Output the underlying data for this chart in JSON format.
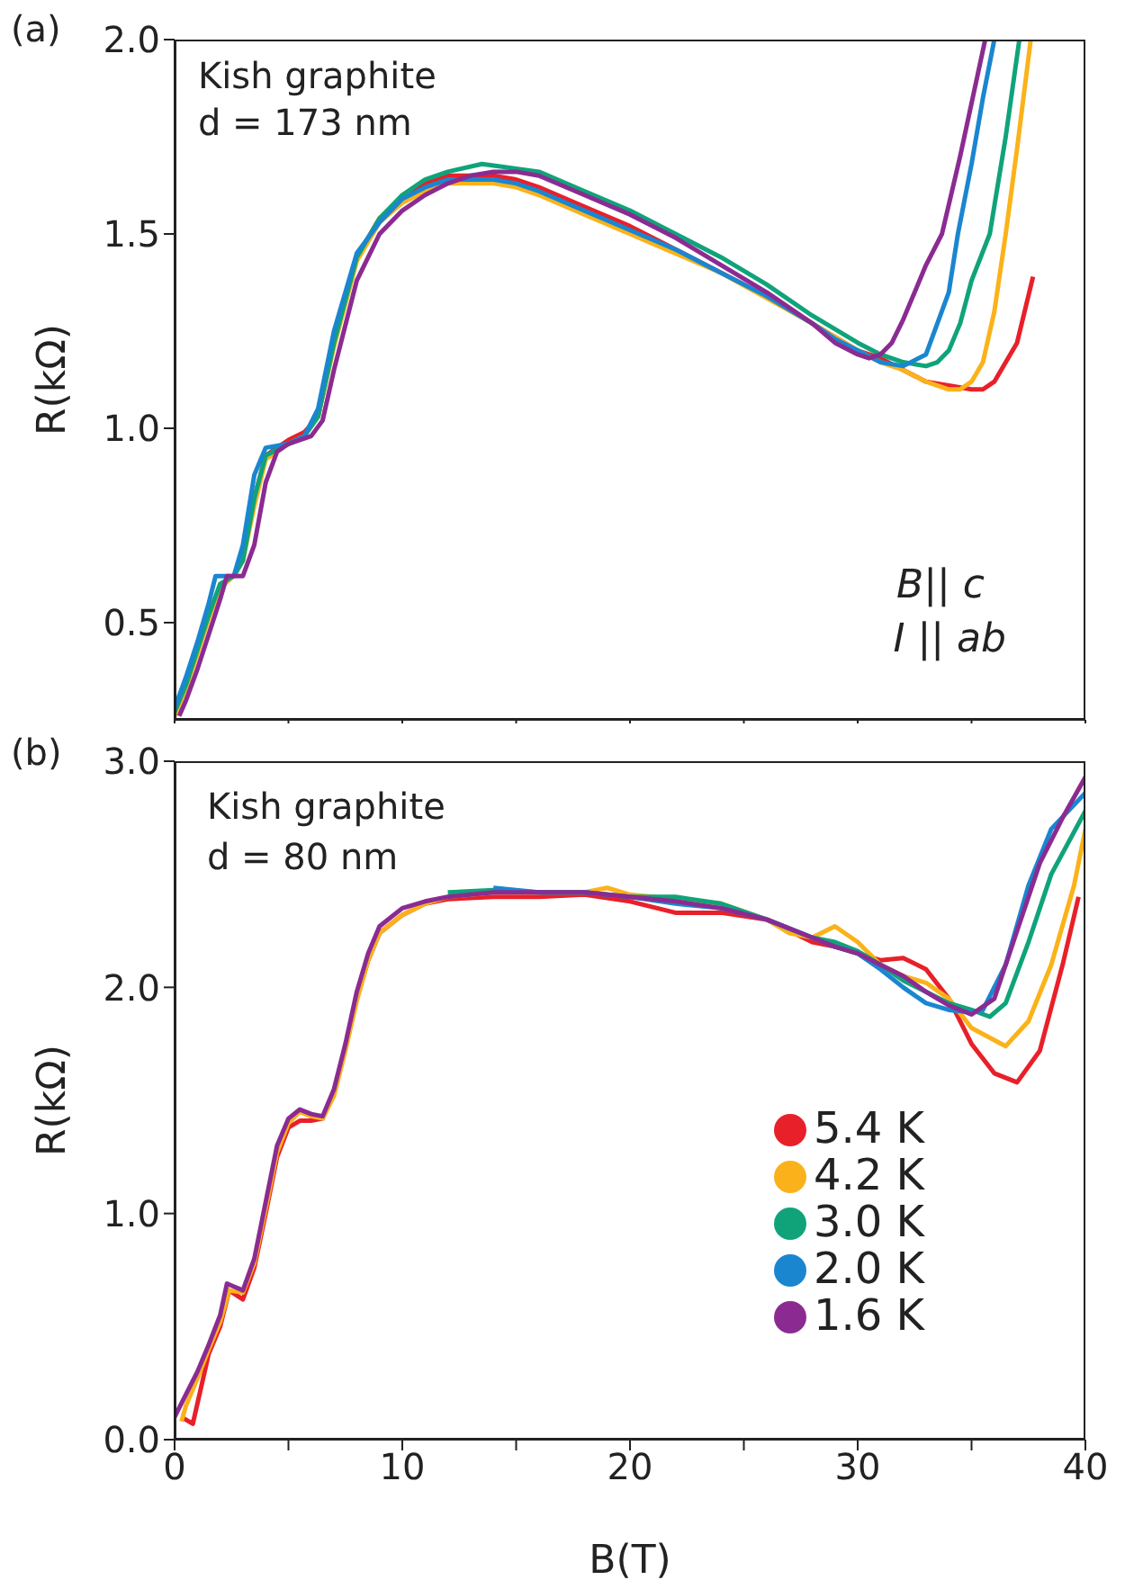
{
  "chart_data": [
    {
      "type": "line",
      "xlim": [
        0,
        40
      ],
      "xticks": [
        {
          "value": 0,
          "label": null
        },
        {
          "value": 5,
          "label": null
        },
        {
          "value": 10,
          "label": null
        },
        {
          "value": 15,
          "label": null
        },
        {
          "value": 20,
          "label": null
        },
        {
          "value": 25,
          "label": null
        },
        {
          "value": 30,
          "label": null
        },
        {
          "value": 35,
          "label": null
        },
        {
          "value": 40,
          "label": null
        }
      ],
      "ylim": [
        0.25,
        2.0
      ],
      "yticks": [
        0.5,
        {
          "value": 1.0,
          "label": "1.0"
        },
        1.5,
        {
          "value": 2.0,
          "label": "2.0"
        }
      ],
      "ylabel": "R(kΩ)",
      "tick_labels": "y",
      "legend": false,
      "marker": "none",
      "line_style": "solid",
      "annotations": [
        "(a)",
        "Kish graphite",
        "d = 173 nm",
        "B|| c",
        "I || ab"
      ],
      "series": [
        {
          "color": "#e8202a",
          "x": [
            3.5,
            4,
            5,
            5.7,
            6.3,
            7,
            8,
            9,
            10,
            11,
            12,
            13,
            14,
            15,
            16,
            18,
            20,
            22,
            24,
            26,
            28,
            30,
            31,
            32,
            33,
            34,
            35,
            35.5,
            36,
            37,
            37.7
          ],
          "values": [
            0.82,
            0.93,
            0.97,
            0.99,
            1.03,
            1.22,
            1.44,
            1.54,
            null,
            1.63,
            1.65,
            1.65,
            1.65,
            1.64,
            1.62,
            1.57,
            1.52,
            1.46,
            null,
            1.34,
            1.27,
            1.2,
            1.18,
            1.15,
            1.12,
            1.11,
            1.1,
            1.1,
            1.12,
            1.22,
            1.39
          ]
        },
        {
          "color": "#fbb21a",
          "x": [
            0,
            0.5,
            1,
            1.5,
            2,
            2.6,
            3,
            3.5,
            4,
            5,
            5.7,
            6.3,
            7,
            8,
            9,
            10,
            11,
            12,
            13,
            14,
            15,
            16,
            18,
            20,
            22,
            24,
            26,
            28,
            30,
            31,
            32,
            33,
            34,
            34.5,
            35,
            35.5,
            36,
            36.5,
            37,
            37.6
          ],
          "values": [
            0.26,
            0.33,
            0.42,
            0.51,
            0.59,
            0.62,
            0.66,
            0.8,
            0.92,
            0.96,
            0.98,
            1.03,
            1.21,
            1.43,
            1.53,
            1.58,
            1.61,
            1.63,
            1.63,
            1.63,
            1.62,
            1.6,
            1.55,
            1.5,
            1.45,
            1.4,
            null,
            1.27,
            1.2,
            1.17,
            1.15,
            1.12,
            1.1,
            1.1,
            1.12,
            1.17,
            1.3,
            1.5,
            1.72,
            2.0
          ]
        },
        {
          "color": "#10a37a",
          "x": [
            0,
            0.5,
            1,
            1.5,
            2,
            2.6,
            3,
            3.5,
            4,
            5,
            5.7,
            6.3,
            7,
            8,
            9,
            10,
            11,
            12,
            13.5,
            16,
            18,
            20,
            22,
            24,
            26,
            28,
            30,
            31,
            32,
            33,
            33.5,
            34,
            34.5,
            35,
            35.8,
            36.5,
            37.1
          ],
          "values": [
            0.27,
            0.34,
            0.43,
            0.52,
            0.6,
            0.62,
            0.66,
            0.82,
            0.93,
            0.96,
            0.98,
            1.03,
            1.22,
            1.44,
            1.54,
            1.6,
            1.64,
            1.66,
            1.68,
            1.66,
            1.61,
            1.56,
            1.5,
            1.44,
            1.37,
            1.29,
            1.22,
            1.19,
            1.17,
            1.16,
            1.17,
            1.2,
            1.27,
            1.38,
            1.5,
            1.75,
            2.0
          ]
        },
        {
          "color": "#1a86d0",
          "x": [
            0,
            0.5,
            1,
            1.5,
            1.8,
            2.6,
            3,
            3.5,
            4,
            5,
            5.7,
            6.3,
            7,
            8,
            9,
            10,
            11,
            12,
            13,
            14,
            15,
            16,
            18,
            20,
            22,
            24,
            26,
            28,
            29,
            30,
            31,
            32,
            33,
            34,
            34.4,
            35,
            35.5,
            36
          ],
          "values": [
            0.28,
            0.36,
            0.45,
            0.55,
            0.62,
            0.62,
            0.7,
            0.88,
            0.95,
            0.96,
            0.98,
            1.05,
            1.25,
            1.45,
            1.53,
            1.59,
            1.62,
            1.64,
            1.64,
            1.64,
            1.63,
            1.61,
            1.56,
            1.51,
            1.46,
            1.4,
            1.34,
            1.27,
            1.23,
            1.2,
            1.17,
            1.16,
            1.19,
            1.35,
            1.5,
            1.68,
            1.85,
            2.0
          ]
        },
        {
          "color": "#8b2b92",
          "x": [
            0.2,
            0.5,
            1,
            1.5,
            2,
            2.3,
            3,
            3.5,
            4,
            4.5,
            5,
            6,
            6.5,
            7,
            8,
            9,
            10,
            11,
            12,
            13,
            14,
            15,
            16,
            18,
            20,
            22,
            24,
            26,
            28,
            29,
            30,
            30.5,
            31,
            31.5,
            32,
            33,
            33.7,
            34.5,
            35.6
          ],
          "values": [
            0.26,
            0.3,
            0.38,
            0.47,
            0.56,
            0.62,
            0.62,
            0.7,
            0.86,
            0.94,
            0.96,
            0.98,
            1.02,
            1.15,
            1.38,
            1.5,
            1.56,
            1.6,
            1.63,
            1.65,
            1.66,
            1.66,
            1.65,
            1.6,
            1.55,
            1.49,
            1.42,
            1.35,
            1.27,
            1.22,
            1.19,
            1.18,
            1.19,
            1.22,
            1.28,
            1.42,
            1.5,
            1.7,
            2.0
          ]
        }
      ]
    },
    {
      "type": "line",
      "xlim": [
        0,
        40
      ],
      "xticks": [
        0,
        {
          "value": 5,
          "label": null
        },
        10,
        {
          "value": 15,
          "label": null
        },
        20,
        {
          "value": 25,
          "label": null
        },
        30,
        {
          "value": 35,
          "label": null
        },
        40
      ],
      "ylim": [
        0,
        3.0
      ],
      "yticks": [
        {
          "value": 0,
          "label": "0.0"
        },
        {
          "value": 1.0,
          "label": "1.0"
        },
        {
          "value": 2.0,
          "label": "2.0"
        },
        {
          "value": 3.0,
          "label": "3.0"
        }
      ],
      "xlabel": "B(T)",
      "ylabel": "R(kΩ)",
      "legend": "bottom right",
      "marker": "none",
      "line_style": "solid",
      "annotations": [
        "(b)",
        "Kish graphite",
        "d = 80 nm"
      ],
      "series": [
        {
          "name": "5.4 K",
          "color": "#e8202a",
          "x": [
            0.3,
            0.8,
            1.5,
            2,
            2.4,
            3,
            3.5,
            4,
            4.5,
            5,
            5.5,
            6,
            6.5,
            7,
            7.5,
            8,
            8.5,
            9,
            10,
            11,
            12,
            14,
            16,
            18,
            20,
            22,
            24,
            26,
            28,
            29,
            30,
            31,
            32,
            33,
            34,
            35,
            36,
            37,
            38,
            39,
            39.7
          ],
          "values": [
            0.1,
            0.07,
            0.38,
            0.5,
            0.66,
            0.62,
            0.76,
            1.0,
            1.25,
            1.38,
            1.41,
            1.41,
            1.42,
            1.53,
            1.73,
            1.95,
            2.12,
            2.24,
            2.32,
            2.37,
            2.39,
            2.4,
            2.4,
            2.41,
            2.38,
            2.33,
            2.33,
            2.3,
            2.2,
            2.18,
            2.15,
            2.12,
            2.13,
            2.08,
            1.95,
            1.75,
            1.62,
            1.58,
            1.72,
            2.1,
            2.4
          ]
        },
        {
          "name": "4.2 K",
          "color": "#fbb21a",
          "x": [
            0.3,
            0.5,
            1,
            1.5,
            2,
            2.4,
            3,
            3.5,
            4,
            4.5,
            5,
            5.5,
            6,
            6.5,
            7,
            7.5,
            8,
            8.5,
            9,
            10,
            11,
            12,
            14,
            16,
            18,
            19,
            20,
            22,
            24,
            26,
            27,
            28,
            29,
            30,
            31,
            32,
            33,
            34,
            35,
            36.5,
            37.5,
            38.5,
            39.5,
            40
          ],
          "values": [
            0.08,
            0.15,
            0.27,
            0.4,
            0.52,
            0.66,
            0.65,
            0.78,
            1.02,
            1.27,
            1.4,
            1.45,
            1.43,
            1.42,
            1.52,
            1.72,
            1.94,
            2.12,
            2.24,
            2.32,
            2.37,
            2.4,
            2.42,
            2.42,
            2.42,
            2.44,
            2.41,
            2.39,
            2.37,
            2.3,
            2.24,
            2.22,
            2.27,
            2.2,
            2.1,
            2.05,
            2.02,
            1.95,
            1.82,
            1.74,
            1.85,
            2.1,
            2.45,
            2.7
          ]
        },
        {
          "name": "3.0 K",
          "color": "#10a37a",
          "x": [
            12,
            14,
            16,
            18,
            20,
            22,
            24,
            26,
            28,
            29,
            30,
            31,
            32,
            33,
            34,
            35,
            35.8,
            36.5,
            37.5,
            38.5,
            40
          ],
          "values": [
            2.42,
            2.43,
            2.42,
            2.42,
            2.4,
            2.4,
            2.37,
            2.3,
            2.22,
            2.2,
            2.16,
            2.1,
            2.03,
            1.98,
            1.93,
            1.9,
            1.87,
            1.93,
            2.2,
            2.5,
            2.78
          ]
        },
        {
          "name": "2.0 K",
          "color": "#1a86d0",
          "x": [
            14,
            16,
            18,
            20,
            22,
            24,
            26,
            28,
            29,
            30,
            31,
            32,
            33,
            34,
            35,
            35.5,
            36.5,
            37.5,
            38.5,
            40
          ],
          "values": [
            2.44,
            2.42,
            2.42,
            2.4,
            2.37,
            2.35,
            2.3,
            2.22,
            2.18,
            2.15,
            2.08,
            2.0,
            1.93,
            1.9,
            1.89,
            1.9,
            2.1,
            2.45,
            2.7,
            2.86
          ]
        },
        {
          "name": "1.6 K",
          "color": "#8b2b92",
          "x": [
            0,
            0.5,
            1,
            1.5,
            2,
            2.3,
            3,
            3.5,
            4,
            4.5,
            5,
            5.5,
            6,
            6.5,
            7,
            7.5,
            8,
            8.5,
            9,
            10,
            11,
            12,
            14,
            16,
            18,
            20,
            22,
            24,
            26,
            28,
            29,
            30,
            31,
            32,
            33,
            34,
            35,
            36,
            37,
            38,
            39,
            40
          ],
          "values": [
            0.1,
            0.2,
            0.3,
            0.42,
            0.55,
            0.69,
            0.66,
            0.8,
            1.05,
            1.3,
            1.42,
            1.46,
            1.44,
            1.43,
            1.55,
            1.75,
            1.98,
            2.15,
            2.27,
            2.35,
            2.38,
            2.4,
            2.42,
            2.42,
            2.42,
            2.4,
            2.38,
            2.35,
            2.3,
            2.22,
            2.18,
            2.15,
            2.1,
            2.05,
            1.98,
            1.92,
            1.88,
            1.95,
            2.25,
            2.55,
            2.75,
            2.93
          ]
        }
      ]
    }
  ]
}
